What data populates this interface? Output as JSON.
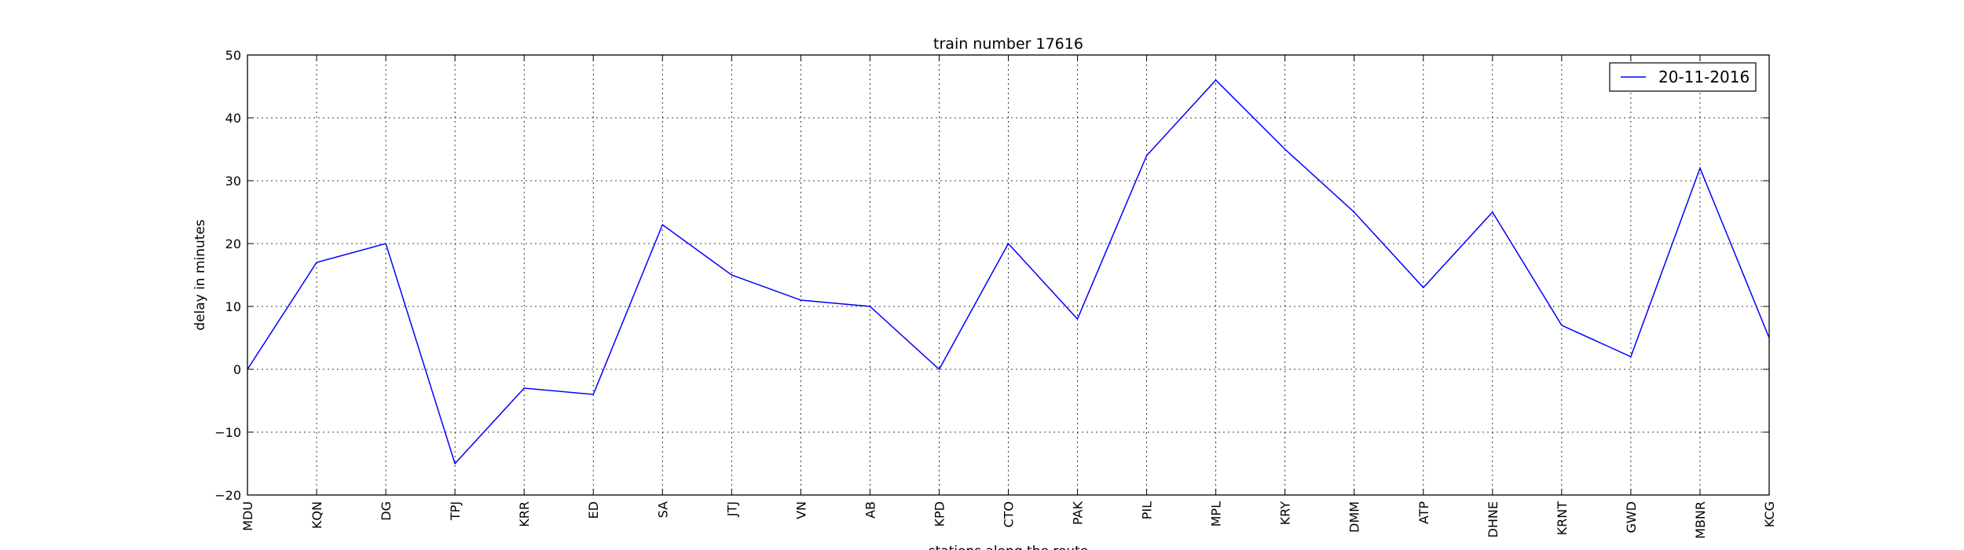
{
  "chart_data": {
    "type": "line",
    "title": "train number 17616",
    "xlabel": "stations along the route",
    "ylabel": "delay in minutes",
    "categories": [
      "MDU",
      "KQN",
      "DG",
      "TPJ",
      "KRR",
      "ED",
      "SA",
      "JTJ",
      "VN",
      "AB",
      "KPD",
      "CTO",
      "PAK",
      "PIL",
      "MPL",
      "KRY",
      "DMM",
      "ATP",
      "DHNE",
      "KRNT",
      "GWD",
      "MBNR",
      "KCG"
    ],
    "series": [
      {
        "name": "20-11-2016",
        "color": "#0000ff",
        "values": [
          0,
          17,
          20,
          -15,
          -3,
          -4,
          23,
          15,
          11,
          10,
          0,
          20,
          8,
          34,
          46,
          35,
          25,
          13,
          25,
          7,
          2,
          32,
          5
        ]
      }
    ],
    "ylim": [
      -20,
      50
    ],
    "yticks": [
      -20,
      -10,
      0,
      10,
      20,
      30,
      40,
      50
    ],
    "ytick_labels": [
      "−20",
      "−10",
      "0",
      "10",
      "20",
      "30",
      "40",
      "50"
    ],
    "grid": true,
    "grid_style": "dotted",
    "legend_position": "top-right"
  }
}
